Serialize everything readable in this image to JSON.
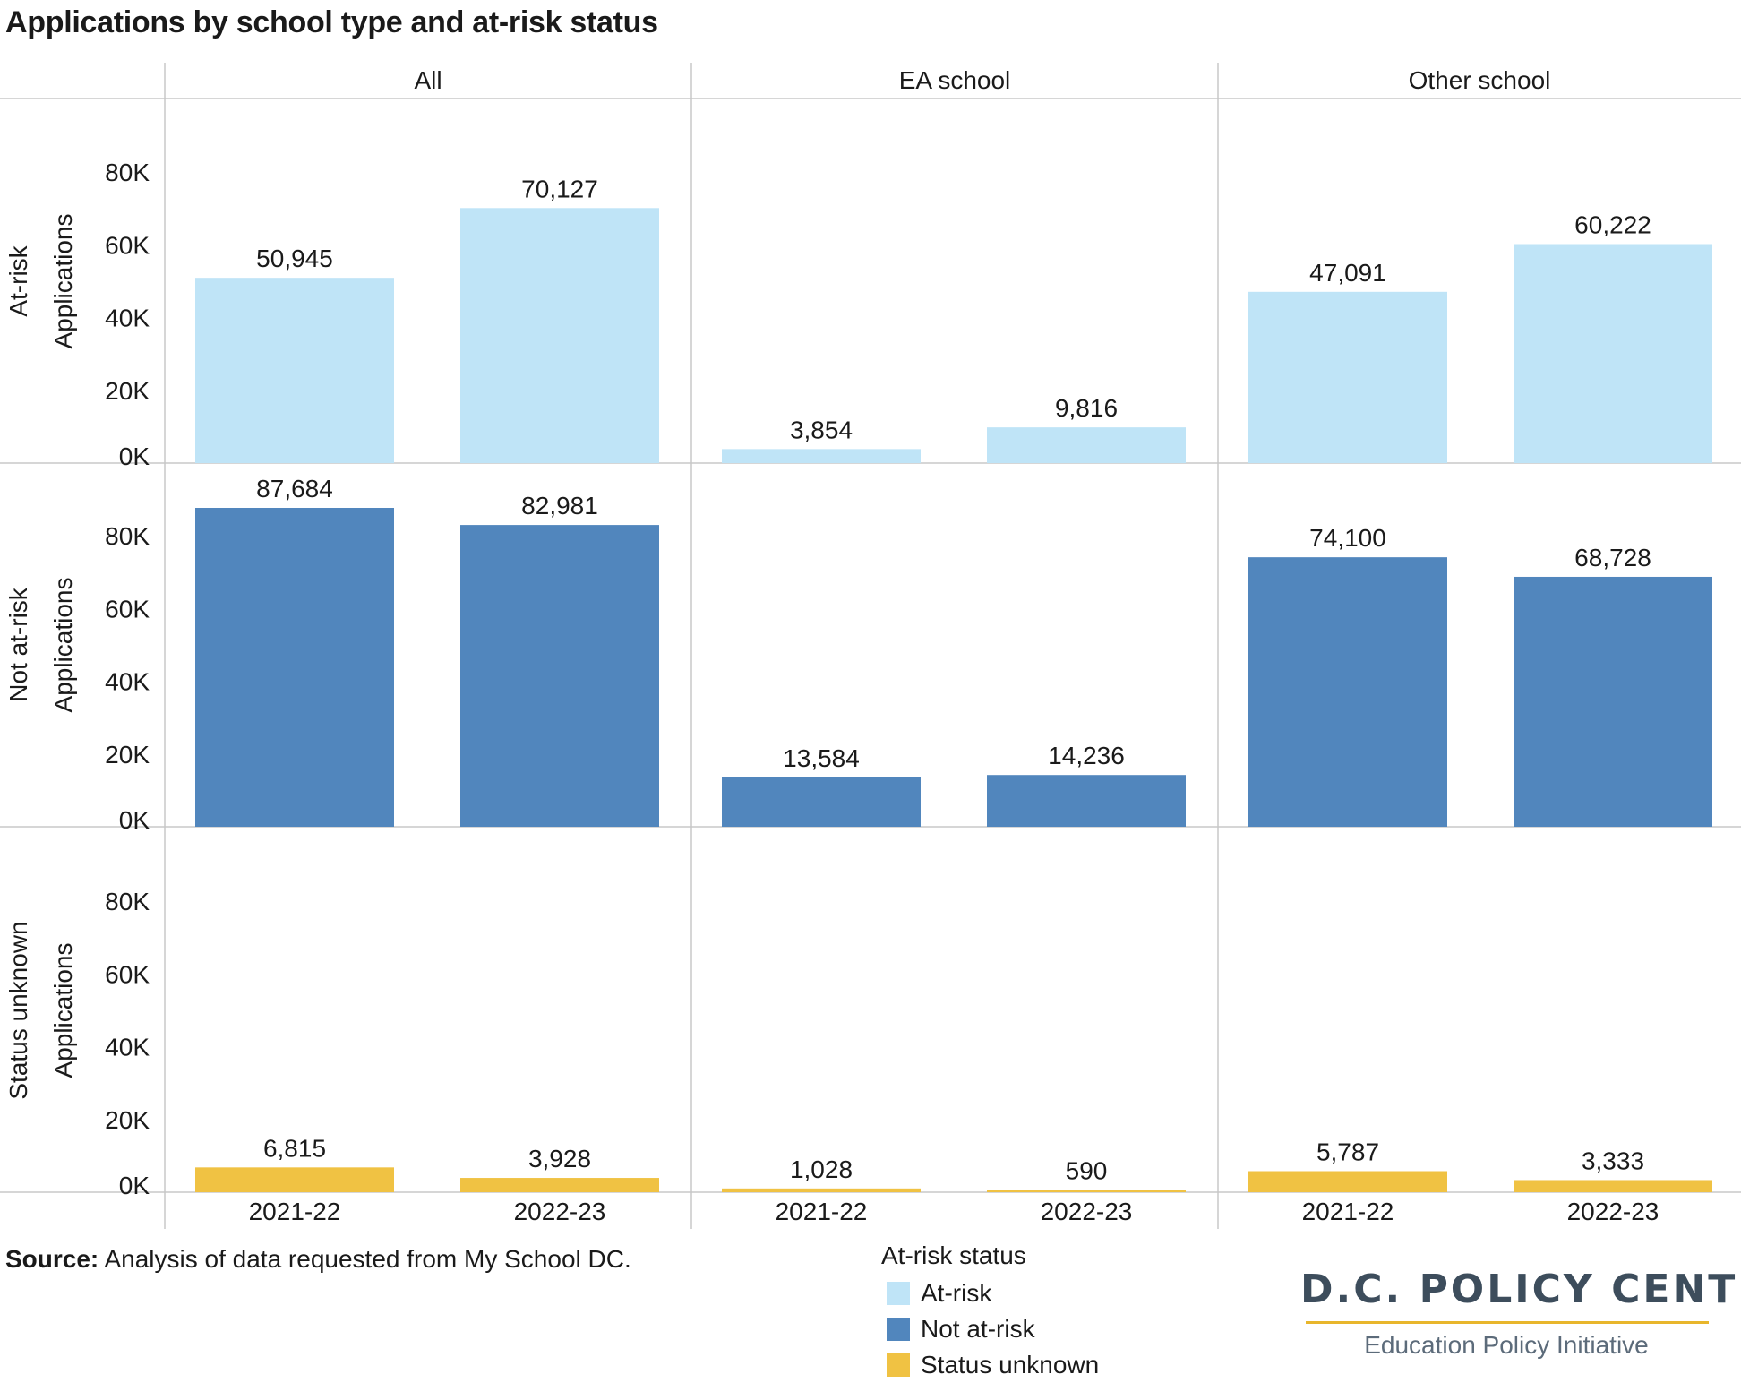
{
  "title": "Applications by school type and at-risk status",
  "chart_data": {
    "type": "bar",
    "title": "Applications by school type and at-risk status",
    "columns": [
      "All",
      "EA school",
      "Other school"
    ],
    "rows": [
      {
        "label": "At-risk",
        "ylabel": "Applications",
        "color": "#bfe4f7"
      },
      {
        "label": "Not at-risk",
        "ylabel": "Applications",
        "color": "#5186bd"
      },
      {
        "label": "Status unknown",
        "ylabel": "Applications",
        "color": "#f0c243"
      }
    ],
    "categories": [
      "2021-22",
      "2022-23"
    ],
    "ylim": [
      0,
      100000
    ],
    "yticks": [
      "0K",
      "20K",
      "40K",
      "60K",
      "80K"
    ],
    "ytick_values": [
      0,
      20000,
      40000,
      60000,
      80000
    ],
    "series": [
      {
        "name": "At-risk",
        "panels": [
          {
            "column": "All",
            "values": [
              50945,
              70127
            ],
            "labels": [
              "50,945",
              "70,127"
            ]
          },
          {
            "column": "EA school",
            "values": [
              3854,
              9816
            ],
            "labels": [
              "3,854",
              "9,816"
            ]
          },
          {
            "column": "Other school",
            "values": [
              47091,
              60222
            ],
            "labels": [
              "47,091",
              "60,222"
            ]
          }
        ]
      },
      {
        "name": "Not at-risk",
        "panels": [
          {
            "column": "All",
            "values": [
              87684,
              82981
            ],
            "labels": [
              "87,684",
              "82,981"
            ]
          },
          {
            "column": "EA school",
            "values": [
              13584,
              14236
            ],
            "labels": [
              "13,584",
              "14,236"
            ]
          },
          {
            "column": "Other school",
            "values": [
              74100,
              68728
            ],
            "labels": [
              "74,100",
              "68,728"
            ]
          }
        ]
      },
      {
        "name": "Status unknown",
        "panels": [
          {
            "column": "All",
            "values": [
              6815,
              3928
            ],
            "labels": [
              "6,815",
              "3,928"
            ]
          },
          {
            "column": "EA school",
            "values": [
              1028,
              590
            ],
            "labels": [
              "1,028",
              "590"
            ]
          },
          {
            "column": "Other school",
            "values": [
              5787,
              3333
            ],
            "labels": [
              "5,787",
              "3,333"
            ]
          }
        ]
      }
    ],
    "grid": false,
    "legend_position": "bottom"
  },
  "legend": {
    "title": "At-risk status",
    "items": [
      {
        "label": "At-risk",
        "color": "#bfe4f7"
      },
      {
        "label": "Not at-risk",
        "color": "#5186bd"
      },
      {
        "label": "Status unknown",
        "color": "#f0c243"
      }
    ]
  },
  "source": {
    "prefix": "Source:",
    "text": " Analysis of data requested from My School DC."
  },
  "logo": {
    "main": "D.C. POLICY CENTER",
    "sub": "Education Policy Initiative",
    "rule_color": "#e8b62c"
  }
}
